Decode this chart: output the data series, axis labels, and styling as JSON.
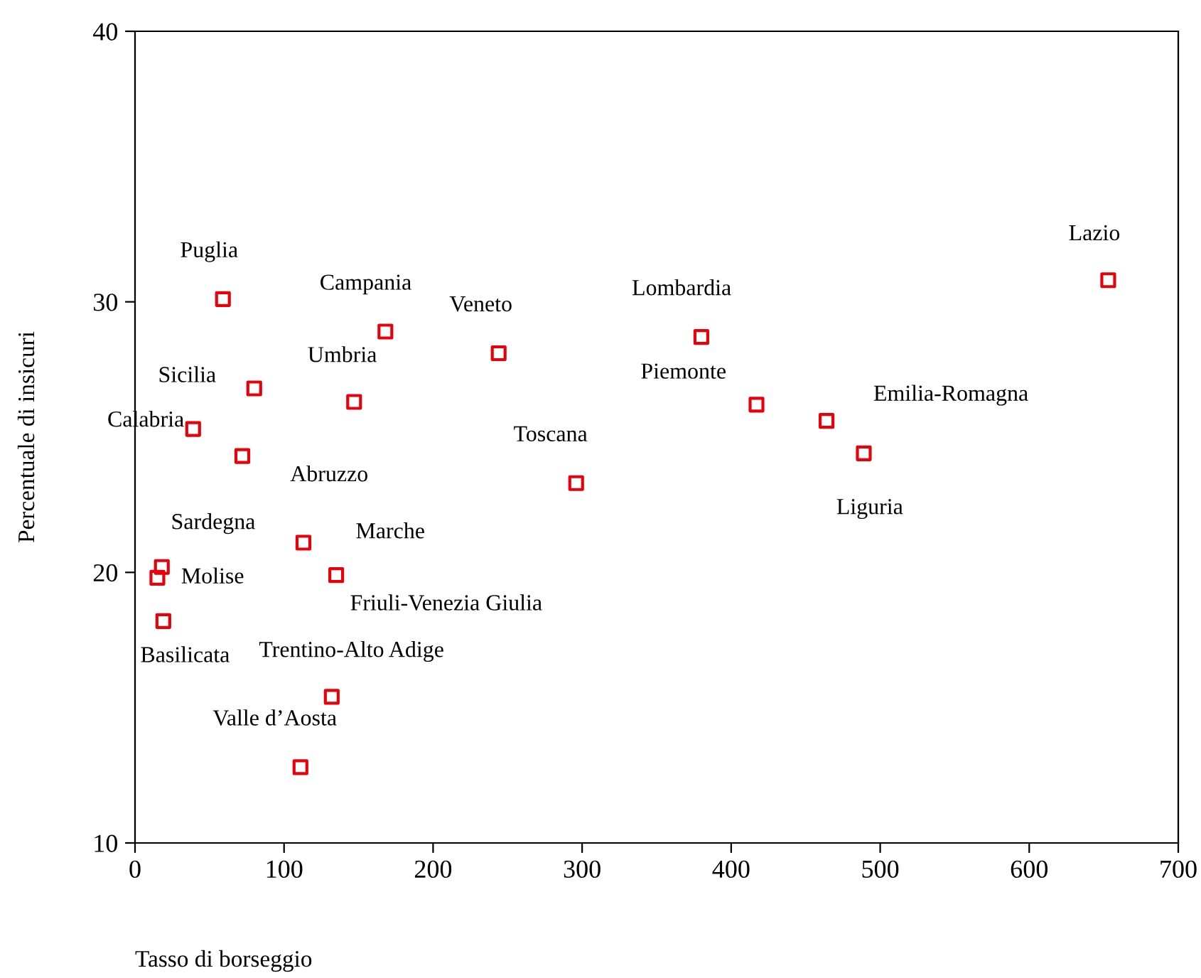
{
  "chart_data": {
    "type": "scatter",
    "xlabel": "Tasso di borseggio",
    "ylabel": "Percentuale di insicuri",
    "x": [
      59,
      168,
      244,
      380,
      653,
      80,
      147,
      417,
      464,
      39,
      72,
      489,
      296,
      18,
      113,
      15,
      135,
      19,
      132,
      111
    ],
    "series": [
      {
        "color": "#e8000b",
        "values": [
          30.1,
          28.9,
          28.1,
          28.7,
          30.8,
          26.8,
          26.3,
          26.2,
          25.6,
          25.3,
          24.3,
          24.4,
          23.3,
          20.2,
          21.1,
          19.8,
          19.9,
          18.2,
          15.4,
          12.8
        ]
      }
    ],
    "marker": "square",
    "grid": false,
    "legend": false,
    "xlim": [
      0,
      700
    ],
    "xticks": [
      0,
      100,
      200,
      300,
      400,
      500,
      600,
      700
    ],
    "ylim": [
      10,
      40
    ],
    "yticks": [
      10,
      20,
      30,
      40
    ],
    "annotations": [
      {
        "text": "Puglia",
        "x": 59,
        "y": 30.1
      },
      {
        "text": "Campania",
        "x": 168,
        "y": 28.9
      },
      {
        "text": "Veneto",
        "x": 244,
        "y": 28.1
      },
      {
        "text": "Lombardia",
        "x": 380,
        "y": 28.7
      },
      {
        "text": "Lazio",
        "x": 653,
        "y": 30.8
      },
      {
        "text": "Sicilia",
        "x": 80,
        "y": 26.8
      },
      {
        "text": "Umbria",
        "x": 147,
        "y": 26.3
      },
      {
        "text": "Piemonte",
        "x": 417,
        "y": 26.2
      },
      {
        "text": "Emilia-Romagna",
        "x": 464,
        "y": 25.6
      },
      {
        "text": "Calabria",
        "x": 39,
        "y": 25.3
      },
      {
        "text": "Abruzzo",
        "x": 72,
        "y": 24.3
      },
      {
        "text": "Liguria",
        "x": 489,
        "y": 24.4
      },
      {
        "text": "Toscana",
        "x": 296,
        "y": 23.3
      },
      {
        "text": "Sardegna",
        "x": 18,
        "y": 20.2
      },
      {
        "text": "Marche",
        "x": 113,
        "y": 21.1
      },
      {
        "text": "Molise",
        "x": 15,
        "y": 19.8
      },
      {
        "text": "Friuli-Venezia Giulia",
        "x": 135,
        "y": 19.9
      },
      {
        "text": "Basilicata",
        "x": 19,
        "y": 18.2
      },
      {
        "text": "Trentino-Alto Adige",
        "x": 132,
        "y": 15.4
      },
      {
        "text": "Valle d’Aosta",
        "x": 111,
        "y": 12.8
      }
    ]
  }
}
